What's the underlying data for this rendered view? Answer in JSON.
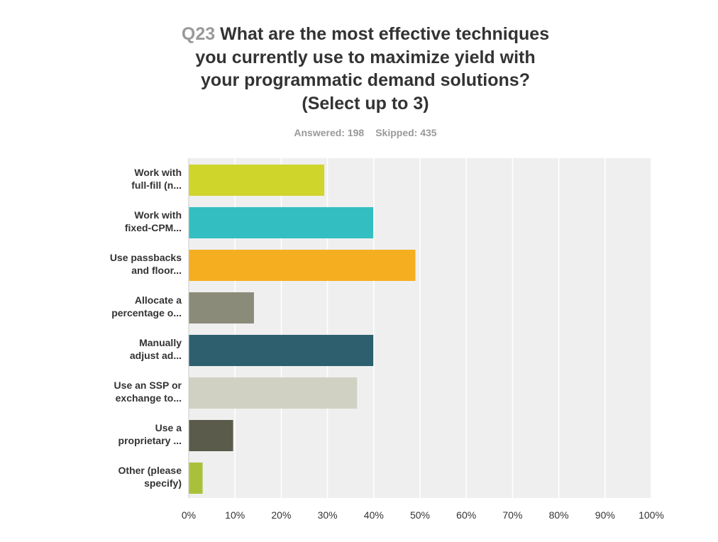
{
  "header": {
    "question_number": "Q23",
    "question_lines": [
      "What are the most effective techniques",
      "you currently use to maximize yield with",
      "your programmatic demand solutions?",
      "(Select up to 3)"
    ],
    "answered": "Answered: 198",
    "skipped": "Skipped: 435"
  },
  "colors": {
    "plot_background": "#efefef",
    "gridline": "#ffffff",
    "title_text": "#333333",
    "muted_text": "#999999"
  },
  "chart_data": {
    "type": "bar",
    "orientation": "horizontal",
    "categories": [
      [
        "Work with",
        "full-fill (n..."
      ],
      [
        "Work with",
        "fixed-CPM..."
      ],
      [
        "Use passbacks",
        "and floor..."
      ],
      [
        "Allocate a",
        "percentage o..."
      ],
      [
        "Manually",
        "adjust ad..."
      ],
      [
        "Use an SSP or",
        "exchange to..."
      ],
      [
        "Use a",
        "proprietary ..."
      ],
      [
        "Other (please",
        "specify)"
      ]
    ],
    "values": [
      29.3,
      39.9,
      49.0,
      14.1,
      39.9,
      36.4,
      9.6,
      3.0
    ],
    "colors": [
      "#cfd52b",
      "#33bfc1",
      "#f5ae20",
      "#8b8b7a",
      "#2e5f6e",
      "#d1d1c3",
      "#5b5b4b",
      "#a9c13a"
    ],
    "xlim": [
      0,
      100
    ],
    "x_ticks": [
      "0%",
      "10%",
      "20%",
      "30%",
      "40%",
      "50%",
      "60%",
      "70%",
      "80%",
      "90%",
      "100%"
    ],
    "grid": true,
    "legend": "none"
  }
}
